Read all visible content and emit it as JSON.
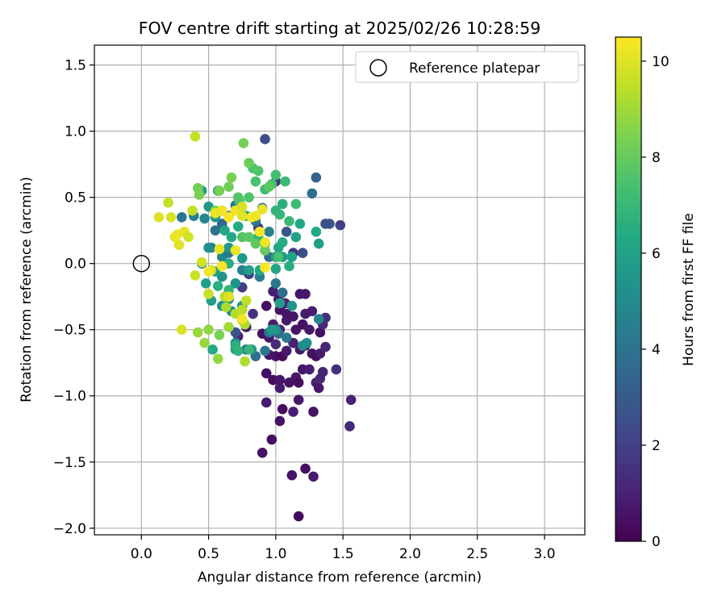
{
  "chart_data": {
    "type": "scatter",
    "title": "FOV centre drift starting at 2025/02/26 10:28:59",
    "xlabel": "Angular distance from reference (arcmin)",
    "ylabel": "Rotation from reference (arcmin)",
    "xlim": [
      -0.35,
      3.3
    ],
    "ylim": [
      -2.05,
      1.65
    ],
    "xticks": [
      0.0,
      0.5,
      1.0,
      1.5,
      2.0,
      2.5,
      3.0
    ],
    "xtick_labels": [
      "0.0",
      "0.5",
      "1.0",
      "1.5",
      "2.0",
      "2.5",
      "3.0"
    ],
    "yticks": [
      -2.0,
      -1.5,
      -1.0,
      -0.5,
      0.0,
      0.5,
      1.0,
      1.5
    ],
    "ytick_labels": [
      "−2.0",
      "−1.5",
      "−1.0",
      "−0.5",
      "0.0",
      "0.5",
      "1.0",
      "1.5"
    ],
    "grid": true,
    "legend": {
      "position": "top-right",
      "entries": [
        {
          "label": "Reference platepar",
          "marker": "open-circle"
        }
      ]
    },
    "reference_point": {
      "x": 0.0,
      "y": 0.0
    },
    "colorbar": {
      "label": "Hours from first FF file",
      "colormap": "viridis",
      "range": [
        0,
        10.5
      ],
      "ticks": [
        0,
        2,
        4,
        6,
        8,
        10
      ],
      "tick_labels": [
        "0",
        "2",
        "4",
        "6",
        "8",
        "10"
      ]
    },
    "points": [
      [
        1.17,
        -1.91,
        0.3
      ],
      [
        0.9,
        -1.43,
        0.5
      ],
      [
        0.97,
        -1.33,
        0.4
      ],
      [
        1.12,
        -1.6,
        0.6
      ],
      [
        1.22,
        -1.55,
        0.4
      ],
      [
        1.28,
        -1.61,
        0.8
      ],
      [
        0.93,
        -1.05,
        0.8
      ],
      [
        1.03,
        -1.19,
        0.5
      ],
      [
        1.05,
        -1.1,
        0.3
      ],
      [
        1.13,
        -1.12,
        0.9
      ],
      [
        1.17,
        -1.03,
        0.7
      ],
      [
        1.28,
        -1.12,
        0.5
      ],
      [
        1.55,
        -1.23,
        1.2
      ],
      [
        1.56,
        -1.03,
        1.0
      ],
      [
        0.93,
        -0.83,
        0.4
      ],
      [
        0.98,
        -0.88,
        0.3
      ],
      [
        1.03,
        -0.88,
        0.6
      ],
      [
        1.03,
        -0.94,
        0.8
      ],
      [
        1.1,
        -0.9,
        0.5
      ],
      [
        1.15,
        -0.86,
        0.7
      ],
      [
        1.17,
        -0.9,
        0.4
      ],
      [
        1.2,
        -0.8,
        0.6
      ],
      [
        1.25,
        -0.8,
        0.9
      ],
      [
        1.3,
        -0.9,
        1.0
      ],
      [
        1.32,
        -0.94,
        0.7
      ],
      [
        1.33,
        -0.87,
        1.2
      ],
      [
        1.35,
        -0.82,
        1.1
      ],
      [
        1.45,
        -0.8,
        1.4
      ],
      [
        1.0,
        -0.7,
        0.5
      ],
      [
        1.05,
        -0.7,
        0.3
      ],
      [
        1.08,
        -0.66,
        0.8
      ],
      [
        1.13,
        -0.6,
        1.0
      ],
      [
        1.18,
        -0.65,
        0.7
      ],
      [
        1.22,
        -0.62,
        0.9
      ],
      [
        1.27,
        -0.68,
        0.6
      ],
      [
        1.3,
        -0.7,
        0.4
      ],
      [
        1.33,
        -0.68,
        0.8
      ],
      [
        1.37,
        -0.63,
        1.1
      ],
      [
        0.9,
        -0.53,
        0.5
      ],
      [
        0.95,
        -0.56,
        0.7
      ],
      [
        0.98,
        -0.46,
        0.9
      ],
      [
        1.03,
        -0.5,
        1.0
      ],
      [
        1.08,
        -0.43,
        0.8
      ],
      [
        1.15,
        -0.5,
        0.6
      ],
      [
        1.2,
        -0.46,
        0.5
      ],
      [
        1.25,
        -0.5,
        0.7
      ],
      [
        1.33,
        -0.52,
        0.4
      ],
      [
        1.35,
        -0.46,
        1.2
      ],
      [
        1.37,
        -0.41,
        1.4
      ],
      [
        1.27,
        -0.36,
        0.9
      ],
      [
        1.03,
        -0.35,
        0.5
      ],
      [
        1.08,
        -0.38,
        0.7
      ],
      [
        1.13,
        -0.4,
        0.6
      ],
      [
        1.22,
        -0.38,
        0.8
      ],
      [
        0.93,
        -0.32,
        0.4
      ],
      [
        0.98,
        -0.21,
        0.9
      ],
      [
        1.02,
        -0.27,
        0.8
      ],
      [
        1.07,
        -0.3,
        1.1
      ],
      [
        1.18,
        -0.23,
        0.6
      ],
      [
        1.22,
        -0.23,
        0.7
      ],
      [
        0.83,
        -0.38,
        1.5
      ],
      [
        0.72,
        -0.55,
        1.0
      ],
      [
        0.78,
        -0.48,
        0.7
      ],
      [
        0.95,
        -0.69,
        0.7
      ],
      [
        1.0,
        -0.61,
        1.3
      ],
      [
        0.92,
        0.94,
        2.4
      ],
      [
        1.0,
        0.62,
        1.7
      ],
      [
        0.87,
        0.27,
        1.9
      ],
      [
        0.92,
        0.1,
        2.2
      ],
      [
        1.08,
        0.24,
        2.8
      ],
      [
        1.13,
        0.08,
        1.6
      ],
      [
        1.2,
        0.08,
        2.5
      ],
      [
        0.8,
        -0.08,
        2.0
      ],
      [
        0.75,
        -0.18,
        1.9
      ],
      [
        0.7,
        -0.52,
        2.7
      ],
      [
        1.48,
        0.29,
        2.0
      ],
      [
        1.4,
        0.3,
        2.8
      ],
      [
        1.3,
        0.65,
        3.3
      ],
      [
        1.27,
        0.53,
        3.8
      ],
      [
        1.37,
        0.3,
        2.6
      ],
      [
        0.6,
        0.3,
        3.5
      ],
      [
        0.65,
        0.36,
        3.9
      ],
      [
        0.7,
        0.44,
        4.3
      ],
      [
        0.85,
        0.32,
        4.2
      ],
      [
        0.9,
        0.42,
        3.9
      ],
      [
        0.95,
        0.24,
        4.6
      ],
      [
        0.55,
        0.25,
        4.0
      ],
      [
        0.52,
        0.12,
        4.5
      ],
      [
        0.6,
        0.05,
        4.8
      ],
      [
        0.65,
        0.08,
        4.1
      ],
      [
        0.75,
        -0.05,
        4.6
      ],
      [
        0.88,
        -0.1,
        4.4
      ],
      [
        0.95,
        0.05,
        3.8
      ],
      [
        1.0,
        -0.15,
        4.2
      ],
      [
        1.05,
        -0.22,
        3.7
      ],
      [
        1.02,
        -0.53,
        3.7
      ],
      [
        0.78,
        -0.65,
        3.6
      ],
      [
        0.85,
        -0.7,
        3.8
      ],
      [
        0.92,
        -0.66,
        4.1
      ],
      [
        0.95,
        -0.52,
        4.3
      ],
      [
        1.08,
        -0.56,
        4.2
      ],
      [
        0.3,
        0.35,
        4.2
      ],
      [
        0.39,
        0.36,
        4.5
      ],
      [
        0.47,
        0.34,
        4.8
      ],
      [
        1.2,
        -0.62,
        5.0
      ],
      [
        1.23,
        -0.6,
        5.2
      ],
      [
        1.32,
        -0.42,
        4.8
      ],
      [
        0.6,
        -0.32,
        5.2
      ],
      [
        0.65,
        -0.27,
        5.5
      ],
      [
        0.75,
        -0.32,
        5.3
      ],
      [
        0.67,
        -0.36,
        5.1
      ],
      [
        0.82,
        -0.65,
        5.4
      ],
      [
        0.7,
        -0.6,
        5.0
      ],
      [
        0.7,
        -0.65,
        5.7
      ],
      [
        1.12,
        -0.32,
        5.4
      ],
      [
        1.03,
        -0.3,
        5.8
      ],
      [
        1.0,
        -0.5,
        5.4
      ],
      [
        0.97,
        -0.5,
        5.6
      ],
      [
        0.45,
        0.0,
        5.1
      ],
      [
        0.5,
        0.12,
        5.2
      ],
      [
        0.6,
        -0.1,
        5.4
      ],
      [
        0.65,
        0.12,
        5.5
      ],
      [
        0.7,
        -0.15,
        5.3
      ],
      [
        0.75,
        0.04,
        5.6
      ],
      [
        0.8,
        -0.05,
        5.8
      ],
      [
        0.88,
        -0.05,
        6.3
      ],
      [
        1.0,
        -0.04,
        6.1
      ],
      [
        1.05,
        0.05,
        5.5
      ],
      [
        1.1,
        -0.02,
        6.5
      ],
      [
        1.12,
        0.05,
        6.1
      ],
      [
        1.0,
        0.05,
        5.9
      ],
      [
        1.02,
        0.12,
        6.2
      ],
      [
        1.05,
        0.16,
        6.4
      ],
      [
        1.15,
        0.2,
        6.0
      ],
      [
        1.18,
        0.3,
        6.2
      ],
      [
        1.3,
        0.24,
        6.3
      ],
      [
        1.32,
        0.15,
        5.9
      ],
      [
        0.55,
        0.35,
        5.6
      ],
      [
        0.6,
        0.4,
        5.7
      ],
      [
        0.57,
        0.55,
        5.8
      ],
      [
        0.5,
        0.43,
        5.6
      ],
      [
        0.45,
        0.55,
        6.0
      ],
      [
        0.52,
        -0.28,
        5.8
      ],
      [
        0.48,
        -0.15,
        5.9
      ],
      [
        0.55,
        -0.06,
        5.9
      ],
      [
        0.62,
        0.25,
        6.1
      ],
      [
        0.67,
        0.2,
        6.3
      ],
      [
        0.72,
        0.28,
        6.4
      ],
      [
        0.78,
        0.36,
        6.5
      ],
      [
        0.87,
        0.2,
        6.7
      ],
      [
        0.92,
        0.15,
        6.8
      ],
      [
        0.65,
        0.0,
        6.5
      ],
      [
        0.57,
        -0.17,
        6.6
      ],
      [
        0.65,
        -0.2,
        6.8
      ],
      [
        0.53,
        -0.65,
        6.4
      ],
      [
        0.7,
        -0.62,
        6.6
      ],
      [
        0.72,
        -0.66,
        6.8
      ],
      [
        0.8,
        -0.65,
        6.9
      ],
      [
        1.05,
        0.45,
        6.6
      ],
      [
        1.0,
        0.4,
        6.8
      ],
      [
        1.03,
        0.37,
        6.9
      ],
      [
        1.1,
        0.32,
        7.0
      ],
      [
        1.15,
        0.45,
        7.2
      ],
      [
        1.07,
        0.62,
        7.1
      ],
      [
        1.0,
        0.67,
        7.3
      ],
      [
        0.97,
        0.6,
        7.3
      ],
      [
        0.92,
        0.56,
        7.2
      ],
      [
        0.85,
        0.62,
        7.4
      ],
      [
        0.83,
        0.72,
        7.5
      ],
      [
        0.87,
        0.7,
        7.6
      ],
      [
        0.95,
        0.58,
        7.8
      ],
      [
        0.72,
        0.5,
        7.7
      ],
      [
        0.73,
        0.47,
        7.6
      ],
      [
        0.8,
        0.5,
        7.5
      ],
      [
        0.75,
        0.2,
        7.7
      ],
      [
        0.8,
        0.2,
        7.8
      ],
      [
        0.85,
        0.15,
        7.9
      ],
      [
        0.92,
        0.1,
        8.0
      ],
      [
        1.02,
        0.05,
        7.4
      ],
      [
        0.8,
        0.76,
        8.1
      ],
      [
        0.76,
        0.91,
        8.3
      ],
      [
        0.65,
        0.58,
        8.2
      ],
      [
        0.67,
        0.65,
        8.4
      ],
      [
        0.58,
        0.55,
        8.3
      ],
      [
        0.55,
        0.4,
        8.5
      ],
      [
        0.42,
        0.57,
        8.2
      ],
      [
        0.43,
        0.52,
        8.4
      ],
      [
        0.58,
        -0.54,
        8.4
      ],
      [
        0.5,
        -0.5,
        8.7
      ],
      [
        0.47,
        -0.6,
        8.9
      ],
      [
        0.57,
        -0.72,
        8.8
      ],
      [
        0.42,
        -0.52,
        8.9
      ],
      [
        0.65,
        -0.48,
        9.0
      ],
      [
        0.75,
        -0.43,
        9.1
      ],
      [
        0.77,
        -0.46,
        9.2
      ],
      [
        0.77,
        -0.74,
        9.2
      ],
      [
        0.62,
        -0.25,
        9.3
      ],
      [
        0.63,
        -0.33,
        9.1
      ],
      [
        0.7,
        -0.38,
        9.3
      ],
      [
        0.75,
        -0.35,
        9.4
      ],
      [
        0.78,
        -0.28,
        9.5
      ],
      [
        0.4,
        0.96,
        9.6
      ],
      [
        0.2,
        0.46,
        9.6
      ],
      [
        0.22,
        0.35,
        9.9
      ],
      [
        0.13,
        0.35,
        10.0
      ],
      [
        0.25,
        0.2,
        10.1
      ],
      [
        0.27,
        0.22,
        10.2
      ],
      [
        0.28,
        0.14,
        10.0
      ],
      [
        0.32,
        0.24,
        10.1
      ],
      [
        0.35,
        0.2,
        9.8
      ],
      [
        0.4,
        -0.09,
        9.7
      ],
      [
        0.3,
        -0.5,
        9.9
      ],
      [
        0.5,
        -0.23,
        9.6
      ],
      [
        0.52,
        -0.05,
        9.7
      ],
      [
        0.45,
        0.01,
        9.8
      ],
      [
        0.58,
        0.11,
        10.1
      ],
      [
        0.6,
        0.4,
        10.3
      ],
      [
        0.55,
        0.38,
        10.2
      ],
      [
        0.65,
        0.35,
        10.4
      ],
      [
        0.7,
        0.4,
        10.3
      ],
      [
        0.75,
        0.36,
        10.0
      ],
      [
        0.75,
        0.43,
        9.9
      ],
      [
        0.82,
        0.35,
        10.4
      ],
      [
        0.85,
        0.36,
        10.2
      ],
      [
        0.9,
        0.41,
        10.1
      ],
      [
        0.88,
        0.24,
        10.4
      ],
      [
        0.92,
        0.16,
        10.3
      ],
      [
        0.92,
        -0.03,
        10.5
      ],
      [
        0.75,
        -0.42,
        10.3
      ],
      [
        0.65,
        -0.25,
        10.0
      ],
      [
        0.7,
        0.1,
        10.2
      ],
      [
        0.6,
        -0.02,
        10.4
      ],
      [
        0.5,
        -0.06,
        10.3
      ],
      [
        0.38,
        0.4,
        9.6
      ]
    ]
  }
}
